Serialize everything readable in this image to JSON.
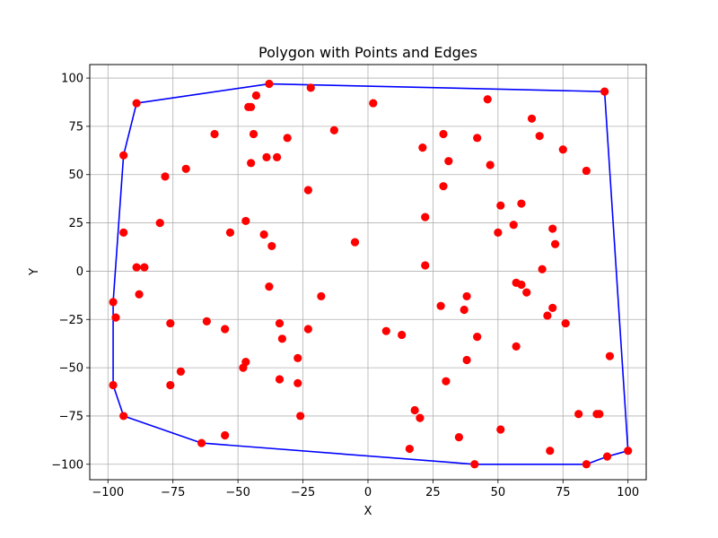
{
  "chart_data": {
    "type": "scatter",
    "title": "Polygon with Points and Edges",
    "xlabel": "X",
    "ylabel": "Y",
    "xlim": [
      -107,
      107
    ],
    "ylim": [
      -108,
      107
    ],
    "xticks": [
      -100,
      -75,
      -50,
      -25,
      0,
      25,
      50,
      75,
      100
    ],
    "yticks": [
      -100,
      -75,
      -50,
      -25,
      0,
      25,
      50,
      75,
      100
    ],
    "grid": true,
    "colors": {
      "points": "#ff0000",
      "polygon": "#0000ff",
      "grid": "#b0b0b0"
    },
    "points": [
      [
        -89,
        87
      ],
      [
        -38,
        97
      ],
      [
        -22,
        95
      ],
      [
        -43,
        91
      ],
      [
        -45,
        85
      ],
      [
        -46,
        85
      ],
      [
        2,
        87
      ],
      [
        46,
        89
      ],
      [
        91,
        93
      ],
      [
        63,
        79
      ],
      [
        -59,
        71
      ],
      [
        -44,
        71
      ],
      [
        -31,
        69
      ],
      [
        -13,
        73
      ],
      [
        21,
        64
      ],
      [
        29,
        71
      ],
      [
        42,
        69
      ],
      [
        66,
        70
      ],
      [
        75,
        63
      ],
      [
        -94,
        60
      ],
      [
        -70,
        53
      ],
      [
        -78,
        49
      ],
      [
        -45,
        56
      ],
      [
        -39,
        59
      ],
      [
        -35,
        59
      ],
      [
        31,
        57
      ],
      [
        47,
        55
      ],
      [
        84,
        52
      ],
      [
        -23,
        42
      ],
      [
        29,
        44
      ],
      [
        51,
        34
      ],
      [
        59,
        35
      ],
      [
        22,
        28
      ],
      [
        56,
        24
      ],
      [
        71,
        22
      ],
      [
        -80,
        25
      ],
      [
        -47,
        26
      ],
      [
        -94,
        20
      ],
      [
        -53,
        20
      ],
      [
        -40,
        19
      ],
      [
        -37,
        13
      ],
      [
        -5,
        15
      ],
      [
        50,
        20
      ],
      [
        72,
        14
      ],
      [
        -89,
        2
      ],
      [
        -86,
        2
      ],
      [
        22,
        3
      ],
      [
        67,
        1
      ],
      [
        57,
        -6
      ],
      [
        59,
        -7
      ],
      [
        61,
        -11
      ],
      [
        -98,
        -16
      ],
      [
        -88,
        -12
      ],
      [
        -38,
        -8
      ],
      [
        -18,
        -13
      ],
      [
        38,
        -13
      ],
      [
        28,
        -18
      ],
      [
        37,
        -20
      ],
      [
        71,
        -19
      ],
      [
        69,
        -23
      ],
      [
        -97,
        -24
      ],
      [
        -76,
        -27
      ],
      [
        -62,
        -26
      ],
      [
        -55,
        -30
      ],
      [
        -34,
        -27
      ],
      [
        -23,
        -30
      ],
      [
        7,
        -31
      ],
      [
        13,
        -33
      ],
      [
        42,
        -34
      ],
      [
        76,
        -27
      ],
      [
        -33,
        -35
      ],
      [
        57,
        -39
      ],
      [
        93,
        -44
      ],
      [
        -27,
        -45
      ],
      [
        -47,
        -47
      ],
      [
        -48,
        -50
      ],
      [
        -72,
        -52
      ],
      [
        38,
        -46
      ],
      [
        -98,
        -59
      ],
      [
        -76,
        -59
      ],
      [
        -34,
        -56
      ],
      [
        -27,
        -58
      ],
      [
        30,
        -57
      ],
      [
        -94,
        -75
      ],
      [
        -26,
        -75
      ],
      [
        18,
        -72
      ],
      [
        20,
        -76
      ],
      [
        81,
        -74
      ],
      [
        88,
        -74
      ],
      [
        89,
        -74
      ],
      [
        -64,
        -89
      ],
      [
        -55,
        -85
      ],
      [
        16,
        -92
      ],
      [
        35,
        -86
      ],
      [
        51,
        -82
      ],
      [
        70,
        -93
      ],
      [
        41,
        -100
      ],
      [
        84,
        -100
      ],
      [
        92,
        -96
      ],
      [
        100,
        -93
      ]
    ],
    "polygon": [
      [
        -89,
        87
      ],
      [
        -38,
        97
      ],
      [
        91,
        93
      ],
      [
        100,
        -93
      ],
      [
        92,
        -96
      ],
      [
        84,
        -100
      ],
      [
        41,
        -100
      ],
      [
        -64,
        -89
      ],
      [
        -94,
        -75
      ],
      [
        -98,
        -59
      ],
      [
        -98,
        -16
      ],
      [
        -94,
        60
      ],
      [
        -89,
        87
      ]
    ]
  }
}
